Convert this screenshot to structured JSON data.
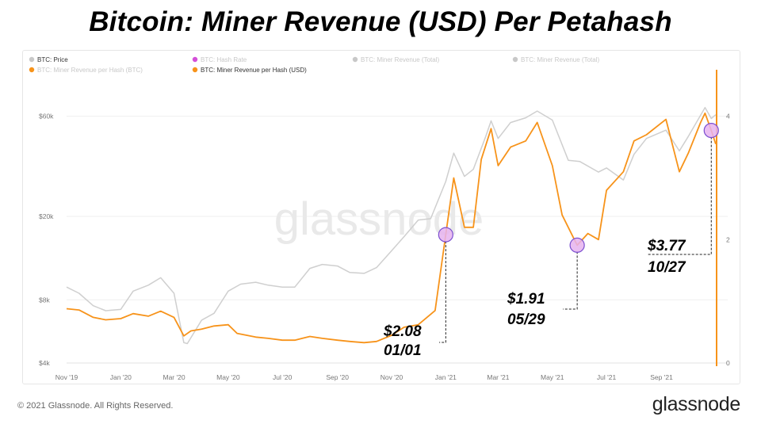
{
  "title": "Bitcoin: Miner Revenue (USD) Per Petahash",
  "footer": {
    "copyright": "© 2021 Glassnode. All Rights Reserved.",
    "logo": "glassnode"
  },
  "watermark": "glassnode",
  "legend": [
    {
      "label": "BTC: Price",
      "color": "#c8c8c8",
      "active": true
    },
    {
      "label": "BTC: Hash Rate",
      "color": "#d44fd8",
      "active": false
    },
    {
      "label": "BTC: Miner Revenue (Total)",
      "color": "#c8c8c8",
      "active": false
    },
    {
      "label": "BTC: Miner Revenue (Total)",
      "color": "#c8c8c8",
      "active": false
    },
    {
      "label": "BTC: Miner Revenue per Hash (BTC)",
      "color": "#f7931a",
      "active": false
    },
    {
      "label": "BTC: Miner Revenue per Hash (USD)",
      "color": "#f7931a",
      "active": true
    }
  ],
  "colors": {
    "price": "#cfcfcf",
    "revenue": "#f7931a",
    "marker_fill": "#e6b3ef",
    "marker_stroke": "#7b4fd0"
  },
  "annotations": [
    {
      "value": "$2.08",
      "date": "01/01"
    },
    {
      "value": "$1.91",
      "date": "05/29"
    },
    {
      "value": "$3.77",
      "date": "10/27"
    }
  ],
  "chart_data": {
    "type": "line",
    "title": "Bitcoin: Miner Revenue (USD) Per Petahash",
    "x_ticks": [
      "Nov '19",
      "Jan '20",
      "Mar '20",
      "May '20",
      "Jul '20",
      "Sep '20",
      "Nov '20",
      "Jan '21",
      "Mar '21",
      "May '21",
      "Jul '21",
      "Sep '21"
    ],
    "left_axis": {
      "scale": "log",
      "ticks": [
        "$4k",
        "$8k",
        "$20k",
        "$60k"
      ],
      "tick_values": [
        4000,
        8000,
        20000,
        60000
      ],
      "ylim": [
        4000,
        90000
      ]
    },
    "right_axis": {
      "scale": "linear",
      "ticks": [
        "0",
        "2",
        "4"
      ],
      "tick_values": [
        0,
        2,
        4
      ],
      "ylim": [
        0,
        4.6
      ]
    },
    "x_range": [
      "2019-11-01",
      "2021-11-02"
    ],
    "grid": true,
    "legend_position": "top-left",
    "series": [
      {
        "name": "BTC: Price",
        "axis": "left",
        "points": [
          [
            "2019-11-01",
            9200
          ],
          [
            "2019-11-15",
            8600
          ],
          [
            "2019-12-01",
            7500
          ],
          [
            "2019-12-15",
            7100
          ],
          [
            "2020-01-01",
            7200
          ],
          [
            "2020-01-15",
            8800
          ],
          [
            "2020-02-01",
            9400
          ],
          [
            "2020-02-15",
            10200
          ],
          [
            "2020-03-01",
            8600
          ],
          [
            "2020-03-12",
            5000
          ],
          [
            "2020-03-16",
            4950
          ],
          [
            "2020-04-01",
            6400
          ],
          [
            "2020-04-15",
            6900
          ],
          [
            "2020-05-01",
            8800
          ],
          [
            "2020-05-15",
            9500
          ],
          [
            "2020-06-01",
            9700
          ],
          [
            "2020-06-15",
            9400
          ],
          [
            "2020-07-01",
            9200
          ],
          [
            "2020-07-15",
            9200
          ],
          [
            "2020-08-01",
            11300
          ],
          [
            "2020-08-15",
            11800
          ],
          [
            "2020-09-01",
            11600
          ],
          [
            "2020-09-15",
            10800
          ],
          [
            "2020-10-01",
            10700
          ],
          [
            "2020-10-15",
            11400
          ],
          [
            "2020-11-01",
            13700
          ],
          [
            "2020-11-15",
            16000
          ],
          [
            "2020-12-01",
            19200
          ],
          [
            "2020-12-15",
            19500
          ],
          [
            "2021-01-01",
            29300
          ],
          [
            "2021-01-10",
            40000
          ],
          [
            "2021-01-22",
            31000
          ],
          [
            "2021-02-01",
            33500
          ],
          [
            "2021-02-15",
            48000
          ],
          [
            "2021-02-21",
            57000
          ],
          [
            "2021-03-01",
            47000
          ],
          [
            "2021-03-15",
            56000
          ],
          [
            "2021-04-01",
            59000
          ],
          [
            "2021-04-14",
            63500
          ],
          [
            "2021-05-01",
            57500
          ],
          [
            "2021-05-19",
            37000
          ],
          [
            "2021-06-01",
            36500
          ],
          [
            "2021-06-22",
            32500
          ],
          [
            "2021-07-01",
            34000
          ],
          [
            "2021-07-20",
            29800
          ],
          [
            "2021-08-01",
            39500
          ],
          [
            "2021-08-15",
            47000
          ],
          [
            "2021-09-06",
            51500
          ],
          [
            "2021-09-21",
            41000
          ],
          [
            "2021-10-01",
            48000
          ],
          [
            "2021-10-20",
            66000
          ],
          [
            "2021-10-27",
            58500
          ],
          [
            "2021-11-01",
            61000
          ]
        ]
      },
      {
        "name": "BTC: Miner Revenue per Hash (USD)",
        "axis": "right",
        "points": [
          [
            "2019-11-01",
            0.88
          ],
          [
            "2019-11-15",
            0.86
          ],
          [
            "2019-12-01",
            0.74
          ],
          [
            "2019-12-15",
            0.7
          ],
          [
            "2020-01-01",
            0.72
          ],
          [
            "2020-01-15",
            0.8
          ],
          [
            "2020-02-01",
            0.76
          ],
          [
            "2020-02-15",
            0.84
          ],
          [
            "2020-03-01",
            0.74
          ],
          [
            "2020-03-12",
            0.44
          ],
          [
            "2020-03-20",
            0.52
          ],
          [
            "2020-04-01",
            0.55
          ],
          [
            "2020-04-15",
            0.6
          ],
          [
            "2020-05-01",
            0.62
          ],
          [
            "2020-05-11",
            0.48
          ],
          [
            "2020-06-01",
            0.42
          ],
          [
            "2020-06-15",
            0.4
          ],
          [
            "2020-07-01",
            0.37
          ],
          [
            "2020-07-15",
            0.37
          ],
          [
            "2020-08-01",
            0.43
          ],
          [
            "2020-08-15",
            0.4
          ],
          [
            "2020-09-01",
            0.37
          ],
          [
            "2020-09-15",
            0.35
          ],
          [
            "2020-10-01",
            0.33
          ],
          [
            "2020-10-15",
            0.35
          ],
          [
            "2020-11-01",
            0.45
          ],
          [
            "2020-11-15",
            0.58
          ],
          [
            "2020-12-01",
            0.62
          ],
          [
            "2020-12-20",
            0.85
          ],
          [
            "2021-01-01",
            2.08
          ],
          [
            "2021-01-10",
            3.0
          ],
          [
            "2021-01-22",
            2.2
          ],
          [
            "2021-02-01",
            2.2
          ],
          [
            "2021-02-10",
            3.3
          ],
          [
            "2021-02-21",
            3.8
          ],
          [
            "2021-03-01",
            3.2
          ],
          [
            "2021-03-15",
            3.5
          ],
          [
            "2021-04-01",
            3.6
          ],
          [
            "2021-04-14",
            3.9
          ],
          [
            "2021-05-01",
            3.2
          ],
          [
            "2021-05-12",
            2.4
          ],
          [
            "2021-05-29",
            1.91
          ],
          [
            "2021-06-10",
            2.1
          ],
          [
            "2021-06-22",
            2.0
          ],
          [
            "2021-07-01",
            2.8
          ],
          [
            "2021-07-20",
            3.1
          ],
          [
            "2021-08-01",
            3.6
          ],
          [
            "2021-08-15",
            3.7
          ],
          [
            "2021-09-06",
            3.95
          ],
          [
            "2021-09-21",
            3.1
          ],
          [
            "2021-10-01",
            3.4
          ],
          [
            "2021-10-15",
            3.9
          ],
          [
            "2021-10-20",
            4.05
          ],
          [
            "2021-10-27",
            3.77
          ],
          [
            "2021-11-01",
            3.55
          ]
        ]
      }
    ],
    "highlights": [
      {
        "date": "2021-01-01",
        "value": 2.08,
        "label": "$2.08",
        "date_label": "01/01"
      },
      {
        "date": "2021-05-29",
        "value": 1.91,
        "label": "$1.91",
        "date_label": "05/29"
      },
      {
        "date": "2021-10-27",
        "value": 3.77,
        "label": "$3.77",
        "date_label": "10/27"
      }
    ]
  }
}
